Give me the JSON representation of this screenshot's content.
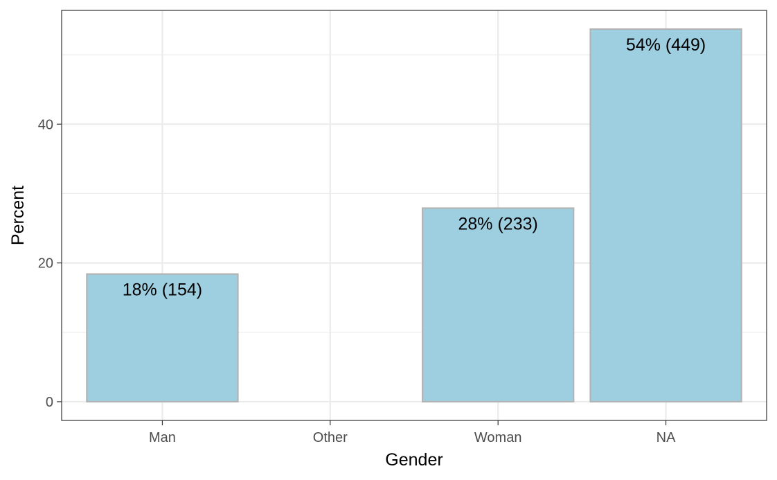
{
  "chart_data": {
    "type": "bar",
    "categories": [
      "Man",
      "Other",
      "Woman",
      "NA"
    ],
    "values": [
      18.4,
      0,
      27.9,
      53.7
    ],
    "data_labels": [
      "18% (154)",
      "",
      "28% (233)",
      "54% (449)"
    ],
    "title": "",
    "xlabel": "Gender",
    "ylabel": "Percent",
    "ylim": [
      -2.7,
      56.4
    ],
    "y_ticks": [
      0,
      20,
      40
    ],
    "y_tick_labels": [
      "0",
      "20",
      "40"
    ],
    "grid": true,
    "legend": "none",
    "colors": {
      "bar_fill": "#9ecfe0",
      "bar_stroke": "#b3b3b3",
      "grid": "#ebebeb",
      "panel_border": "#333333"
    }
  }
}
